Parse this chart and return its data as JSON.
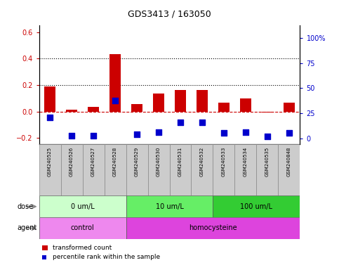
{
  "title": "GDS3413 / 163050",
  "samples": [
    "GSM240525",
    "GSM240526",
    "GSM240527",
    "GSM240528",
    "GSM240529",
    "GSM240530",
    "GSM240531",
    "GSM240532",
    "GSM240533",
    "GSM240534",
    "GSM240535",
    "GSM240848"
  ],
  "red_values": [
    0.19,
    0.015,
    0.035,
    0.435,
    0.055,
    0.135,
    0.165,
    0.16,
    0.065,
    0.1,
    -0.01,
    0.065
  ],
  "blue_values": [
    -0.045,
    -0.185,
    -0.185,
    0.085,
    -0.175,
    -0.155,
    -0.08,
    -0.085,
    -0.16,
    -0.155,
    -0.19,
    -0.165
  ],
  "red_color": "#cc0000",
  "blue_color": "#0000cc",
  "ylim_left": [
    -0.25,
    0.65
  ],
  "yticks_left": [
    -0.2,
    0.0,
    0.2,
    0.4,
    0.6
  ],
  "ylim_right": [
    -6.25,
    112.5
  ],
  "yticks_right": [
    0,
    25,
    50,
    75,
    100
  ],
  "yticklabels_right": [
    "0",
    "25",
    "50",
    "75",
    "100%"
  ],
  "hline_y": 0.0,
  "dotted_lines": [
    0.2,
    0.4
  ],
  "dose_groups": [
    {
      "label": "0 um/L",
      "start": 0,
      "end": 4,
      "color": "#ccffcc"
    },
    {
      "label": "10 um/L",
      "start": 4,
      "end": 8,
      "color": "#66ee66"
    },
    {
      "label": "100 um/L",
      "start": 8,
      "end": 12,
      "color": "#33cc33"
    }
  ],
  "agent_groups": [
    {
      "label": "control",
      "start": 0,
      "end": 4,
      "color": "#ee88ee"
    },
    {
      "label": "homocysteine",
      "start": 4,
      "end": 12,
      "color": "#dd44dd"
    }
  ],
  "dose_label": "dose",
  "agent_label": "agent",
  "legend_red": "transformed count",
  "legend_blue": "percentile rank within the sample",
  "bar_width": 0.5,
  "blue_marker_size": 6,
  "sample_box_color": "#cccccc",
  "sample_box_edge": "#888888"
}
